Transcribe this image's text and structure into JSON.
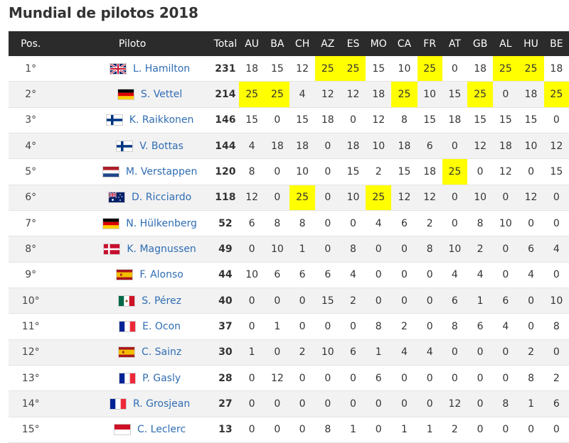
{
  "title": "Mundial de pilotos 2018",
  "columns": [
    "Pos.",
    "Piloto",
    "Total",
    "AU",
    "BA",
    "CH",
    "AZ",
    "ES",
    "MO",
    "CA",
    "FR",
    "AT",
    "GB",
    "AL",
    "HU",
    "BE"
  ],
  "highlight_color": "#ffff00",
  "header_bg": "#2b2b2b",
  "link_color": "#2f6db3",
  "rows": [
    {
      "pos": "1°",
      "flag": "gb-flag-icon",
      "name": "L. Hamilton",
      "total": "231",
      "points": [
        "18",
        "15",
        "12",
        "25",
        "25",
        "15",
        "10",
        "25",
        "0",
        "18",
        "25",
        "25",
        "18"
      ],
      "highlight": [
        3,
        4,
        7,
        10,
        11
      ]
    },
    {
      "pos": "2°",
      "flag": "de-flag-icon",
      "name": "S. Vettel",
      "total": "214",
      "points": [
        "25",
        "25",
        "4",
        "12",
        "12",
        "18",
        "25",
        "10",
        "15",
        "25",
        "0",
        "18",
        "25"
      ],
      "highlight": [
        0,
        1,
        6,
        9,
        12
      ]
    },
    {
      "pos": "3°",
      "flag": "fi-flag-icon",
      "name": "K. Raikkonen",
      "total": "146",
      "points": [
        "15",
        "0",
        "15",
        "18",
        "0",
        "12",
        "8",
        "15",
        "18",
        "15",
        "15",
        "15",
        "0"
      ],
      "highlight": []
    },
    {
      "pos": "4°",
      "flag": "fi-flag-icon",
      "name": "V. Bottas",
      "total": "144",
      "points": [
        "4",
        "18",
        "18",
        "0",
        "18",
        "10",
        "18",
        "6",
        "0",
        "12",
        "18",
        "10",
        "12"
      ],
      "highlight": []
    },
    {
      "pos": "5°",
      "flag": "nl-flag-icon",
      "name": "M. Verstappen",
      "total": "120",
      "points": [
        "8",
        "0",
        "10",
        "0",
        "15",
        "2",
        "15",
        "18",
        "25",
        "0",
        "12",
        "0",
        "15"
      ],
      "highlight": [
        8
      ]
    },
    {
      "pos": "6°",
      "flag": "au-flag-icon",
      "name": "D. Ricciardo",
      "total": "118",
      "points": [
        "12",
        "0",
        "25",
        "0",
        "10",
        "25",
        "12",
        "12",
        "0",
        "10",
        "0",
        "12",
        "0"
      ],
      "highlight": [
        2,
        5
      ]
    },
    {
      "pos": "7°",
      "flag": "de-flag-icon",
      "name": "N. Hülkenberg",
      "total": "52",
      "points": [
        "6",
        "8",
        "8",
        "0",
        "0",
        "4",
        "6",
        "2",
        "0",
        "8",
        "10",
        "0",
        "0"
      ],
      "highlight": []
    },
    {
      "pos": "8°",
      "flag": "dk-flag-icon",
      "name": "K. Magnussen",
      "total": "49",
      "points": [
        "0",
        "10",
        "1",
        "0",
        "8",
        "0",
        "0",
        "8",
        "10",
        "2",
        "0",
        "6",
        "4"
      ],
      "highlight": []
    },
    {
      "pos": "9°",
      "flag": "es-flag-icon",
      "name": "F. Alonso",
      "total": "44",
      "points": [
        "10",
        "6",
        "6",
        "6",
        "4",
        "0",
        "0",
        "0",
        "4",
        "4",
        "0",
        "4",
        "0"
      ],
      "highlight": []
    },
    {
      "pos": "10°",
      "flag": "mx-flag-icon",
      "name": "S. Pérez",
      "total": "40",
      "points": [
        "0",
        "0",
        "0",
        "15",
        "2",
        "0",
        "0",
        "0",
        "6",
        "1",
        "6",
        "0",
        "10"
      ],
      "highlight": []
    },
    {
      "pos": "11°",
      "flag": "fr-flag-icon",
      "name": "E. Ocon",
      "total": "37",
      "points": [
        "0",
        "1",
        "0",
        "0",
        "0",
        "8",
        "2",
        "0",
        "8",
        "6",
        "4",
        "0",
        "8"
      ],
      "highlight": []
    },
    {
      "pos": "12°",
      "flag": "es-flag-icon",
      "name": "C. Sainz",
      "total": "30",
      "points": [
        "1",
        "0",
        "2",
        "10",
        "6",
        "1",
        "4",
        "4",
        "0",
        "0",
        "0",
        "2",
        "0"
      ],
      "highlight": []
    },
    {
      "pos": "13°",
      "flag": "fr-flag-icon",
      "name": "P. Gasly",
      "total": "28",
      "points": [
        "0",
        "12",
        "0",
        "0",
        "0",
        "6",
        "0",
        "0",
        "0",
        "0",
        "0",
        "8",
        "2"
      ],
      "highlight": []
    },
    {
      "pos": "14°",
      "flag": "fr-flag-icon",
      "name": "R. Grosjean",
      "total": "27",
      "points": [
        "0",
        "0",
        "0",
        "0",
        "0",
        "0",
        "0",
        "0",
        "12",
        "0",
        "8",
        "1",
        "6"
      ],
      "highlight": []
    },
    {
      "pos": "15°",
      "flag": "mc-flag-icon",
      "name": "C. Leclerc",
      "total": "13",
      "points": [
        "0",
        "0",
        "0",
        "8",
        "1",
        "0",
        "1",
        "1",
        "2",
        "0",
        "0",
        "0",
        "0"
      ],
      "highlight": []
    }
  ]
}
